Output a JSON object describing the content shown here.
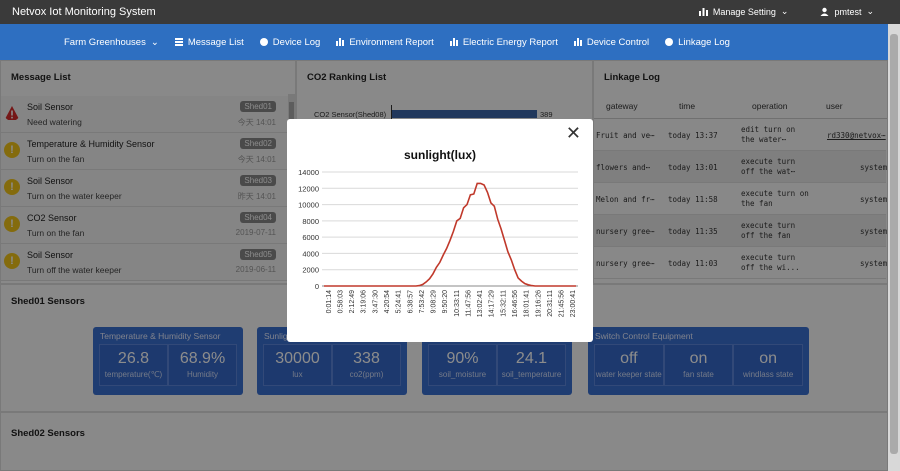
{
  "app": {
    "title": "Netvox Iot Monitoring System"
  },
  "topbar": {
    "manage": "Manage Setting",
    "user": "pmtest"
  },
  "nav": {
    "farm": "Farm Greenhouses",
    "items": [
      "Message List",
      "Device Log",
      "Environment Report",
      "Electric Energy Report",
      "Device Control",
      "Linkage Log"
    ]
  },
  "message_list": {
    "title": "Message List",
    "rows": [
      {
        "sensor": "Soil Sensor",
        "text": "Need watering",
        "shed": "Shed01",
        "time": "今天 14:01",
        "level": "alert"
      },
      {
        "sensor": "Temperature & Humidity Sensor",
        "text": "Turn on the fan",
        "shed": "Shed02",
        "time": "今天 14:01",
        "level": "warn"
      },
      {
        "sensor": "Soil Sensor",
        "text": "Turn on the water keeper",
        "shed": "Shed03",
        "time": "昨天 14:01",
        "level": "warn"
      },
      {
        "sensor": "CO2 Sensor",
        "text": "Turn on the fan",
        "shed": "Shed04",
        "time": "2019-07-11",
        "level": "warn"
      },
      {
        "sensor": "Soil Sensor",
        "text": "Turn off the water keeper",
        "shed": "Shed05",
        "time": "2019-06-11",
        "level": "warn"
      }
    ]
  },
  "co2_ranking": {
    "title": "CO2 Ranking List",
    "first_label": "CO2 Sensor(Shed08)",
    "first_value": "389"
  },
  "linkage_log": {
    "title": "Linkage Log",
    "headers": [
      "gateway",
      "time",
      "operation",
      "user"
    ],
    "rows": [
      {
        "gateway": "Fruit and ve⋯",
        "time": "today 13:37",
        "op1": "edit turn on",
        "op2": "the water⋯",
        "user": "rd330@netvox⋯"
      },
      {
        "gateway": "flowers and⋯",
        "time": "today 13:01",
        "op1": "execute turn",
        "op2": "off the wat⋯",
        "user": "system"
      },
      {
        "gateway": "Melon and fr⋯",
        "time": "today 11:58",
        "op1": "execute turn on",
        "op2": "the fan",
        "user": "system"
      },
      {
        "gateway": "nursery gree⋯",
        "time": "today 11:35",
        "op1": "execute turn",
        "op2": "off the fan",
        "user": "system"
      },
      {
        "gateway": "nursery gree⋯",
        "time": "today 11:03",
        "op1": "execute turn",
        "op2": "off the wi...",
        "user": "system"
      }
    ]
  },
  "shed01": {
    "title": "Shed01 Sensors",
    "cards": [
      {
        "title": "Temperature & Humidity Sensor",
        "cells": [
          {
            "value": "26.8",
            "label": "temperature(℃)"
          },
          {
            "value": "68.9%",
            "label": "Humidity"
          }
        ]
      },
      {
        "title": "Sunlig",
        "cells": [
          {
            "value": "30000",
            "label": "lux"
          },
          {
            "value": "338",
            "label": "co2(ppm)"
          }
        ]
      },
      {
        "title": "",
        "cells": [
          {
            "value": "90%",
            "label": "soil_moisture"
          },
          {
            "value": "24.1",
            "label": "soil_temperature"
          }
        ]
      },
      {
        "title": "Switch Control Equipment",
        "cells": [
          {
            "value": "off",
            "label": "water keeper state"
          },
          {
            "value": "on",
            "label": "fan state"
          },
          {
            "value": "on",
            "label": "windlass state"
          }
        ]
      }
    ]
  },
  "shed02": {
    "title": "Shed02 Sensors"
  },
  "modal": {
    "close": "✕"
  },
  "colors": {
    "topbar": "#3a3a3a",
    "navbar": "#2e6fc1",
    "card": "#3a6fd0",
    "line": "#c0392b",
    "warn": "#f0c419",
    "alert": "#d62b2b"
  },
  "chart_data": {
    "type": "line",
    "title": "sunlight(lux)",
    "ylim": [
      0,
      14000
    ],
    "yticks": [
      0,
      2000,
      4000,
      6000,
      8000,
      10000,
      12000,
      14000
    ],
    "xticklabels": [
      "0:01:14",
      "0:58:03",
      "2:12:49",
      "3:19:06",
      "3:47:30",
      "4:20:54",
      "5:24:41",
      "6:38:57",
      "7:53:42",
      "9:08:29",
      "9:50:20",
      "10:33:11",
      "11:47:56",
      "13:02:41",
      "14:17:29",
      "15:32:11",
      "16:46:56",
      "18:01:41",
      "19:16:26",
      "20:31:11",
      "21:45:56",
      "23:00:41"
    ],
    "series": [
      {
        "values": [
          0,
          0,
          0,
          0,
          0,
          0,
          0,
          0,
          0,
          0,
          0,
          0,
          0,
          0,
          0,
          0,
          0,
          0,
          0,
          0,
          0,
          0,
          0,
          0,
          0,
          0,
          0,
          0,
          50,
          200,
          500,
          900,
          1500,
          2300,
          2900,
          3800,
          4600,
          5600,
          6700,
          8000,
          8300,
          9600,
          10000,
          11200,
          11300,
          12600,
          12600,
          12400,
          11500,
          10200,
          9800,
          8200,
          7000,
          5600,
          4200,
          3200,
          2000,
          1000,
          600,
          300,
          150,
          50,
          0,
          0,
          0,
          0,
          0,
          0,
          0,
          0,
          0,
          0,
          0,
          0,
          0
        ]
      }
    ]
  }
}
